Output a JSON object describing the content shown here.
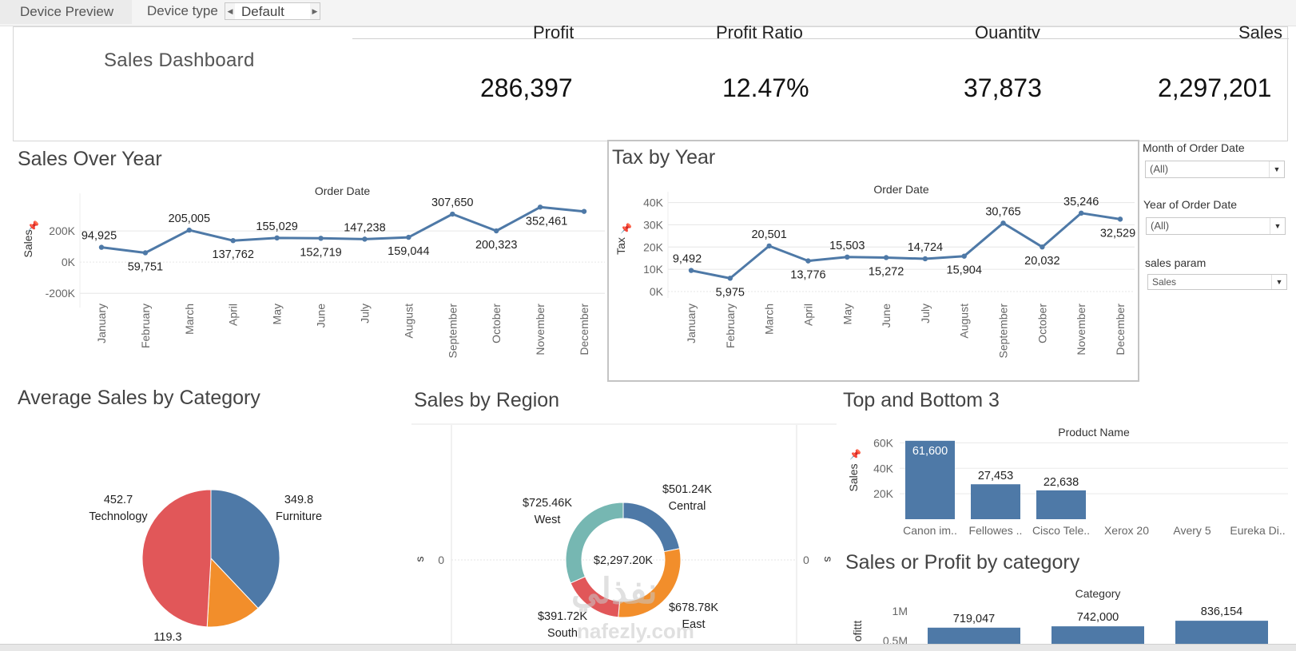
{
  "toolbar": {
    "tab_label": "Device Preview",
    "device_type_label": "Device type",
    "device_type_value": "Default"
  },
  "dashboard": {
    "title": "Sales Dashboard",
    "kpis": [
      {
        "label": "Profit",
        "value": "286,397"
      },
      {
        "label": "Profit Ratio",
        "value": "12.47%"
      },
      {
        "label": "Quantity",
        "value": "37,873"
      },
      {
        "label": "Sales",
        "value": "2,297,201"
      }
    ]
  },
  "filters": {
    "month": {
      "label": "Month of Order Date",
      "value": "(All)"
    },
    "year": {
      "label": "Year of Order Date",
      "value": "(All)"
    },
    "param": {
      "label": "sales param",
      "value": "Sales"
    }
  },
  "titles": {
    "sales_over_year": "Sales Over Year",
    "tax_by_year": "Tax by Year",
    "avg_sales_category": "Average Sales by Category",
    "sales_by_region": "Sales by Region",
    "top_bottom": "Top and Bottom 3",
    "sales_profit_category": "Sales or Profit by category"
  },
  "watermark": {
    "text": "نفذلي",
    "url": "nafezly.com"
  },
  "chart_data": [
    {
      "type": "line",
      "title": "Sales Over Year",
      "xlabel": "Order Date",
      "ylabel": "Sales",
      "categories": [
        "January",
        "February",
        "March",
        "April",
        "May",
        "June",
        "July",
        "August",
        "September",
        "October",
        "November",
        "December"
      ],
      "values": [
        94925,
        59751,
        205005,
        137762,
        155029,
        152719,
        147238,
        159044,
        307650,
        200323,
        352461,
        325000
      ],
      "data_labels": [
        "94,925",
        "59,751",
        "205,005",
        "137,762",
        "155,029",
        "152,719",
        "147,238",
        "159,044",
        "307,650",
        "200,323",
        "352,461",
        ""
      ],
      "yticks": [
        {
          "v": 200000,
          "t": "200K"
        },
        {
          "v": 0,
          "t": "0K"
        },
        {
          "v": -200000,
          "t": "-200K"
        }
      ],
      "ylim": [
        -250000,
        400000
      ],
      "color": "#4e79a7"
    },
    {
      "type": "line",
      "title": "Tax by Year",
      "xlabel": "Order Date",
      "ylabel": "Tax",
      "categories": [
        "January",
        "February",
        "March",
        "April",
        "May",
        "June",
        "July",
        "August",
        "September",
        "October",
        "November",
        "December"
      ],
      "values": [
        9492,
        5975,
        20501,
        13776,
        15503,
        15272,
        14724,
        15904,
        30765,
        20032,
        35246,
        32529
      ],
      "data_labels": [
        "9,492",
        "5,975",
        "20,501",
        "13,776",
        "15,503",
        "15,272",
        "14,724",
        "15,904",
        "30,765",
        "20,032",
        "35,246",
        "32,529"
      ],
      "yticks": [
        {
          "v": 40000,
          "t": "40K"
        },
        {
          "v": 30000,
          "t": "30K"
        },
        {
          "v": 20000,
          "t": "20K"
        },
        {
          "v": 10000,
          "t": "10K"
        },
        {
          "v": 0,
          "t": "0K"
        }
      ],
      "ylim": [
        0,
        42000
      ],
      "color": "#4e79a7"
    },
    {
      "type": "pie",
      "title": "Average Sales by Category",
      "slices": [
        {
          "name": "Furniture",
          "value": 349.8,
          "label": "349.8",
          "color": "#4e79a7"
        },
        {
          "name": "",
          "value": 119.3,
          "label": "119.3",
          "color": "#f28e2b"
        },
        {
          "name": "Technology",
          "value": 452.7,
          "label": "452.7",
          "color": "#e15759"
        }
      ]
    },
    {
      "type": "pie",
      "title": "Sales by Region",
      "center_label": "$2,297.20K",
      "axis_label": "s",
      "axis_tick": "0",
      "slices": [
        {
          "name": "Central",
          "value": 501.24,
          "label": "$501.24K",
          "color": "#4e79a7"
        },
        {
          "name": "East",
          "value": 678.78,
          "label": "$678.78K",
          "color": "#f28e2b"
        },
        {
          "name": "South",
          "value": 391.72,
          "label": "$391.72K",
          "color": "#e15759"
        },
        {
          "name": "West",
          "value": 725.46,
          "label": "$725.46K",
          "color": "#76b7b2"
        }
      ]
    },
    {
      "type": "bar",
      "title": "Top and Bottom 3",
      "xlabel": "Product Name",
      "ylabel": "Sales",
      "categories": [
        "Canon im..",
        "Fellowes ..",
        "Cisco Tele..",
        "Xerox 20",
        "Avery 5",
        "Eureka Di.."
      ],
      "values": [
        61600,
        27453,
        22638,
        0,
        0,
        0
      ],
      "data_labels": [
        "61,600",
        "27,453",
        "22,638",
        "",
        "",
        ""
      ],
      "yticks": [
        {
          "v": 60000,
          "t": "60K"
        },
        {
          "v": 40000,
          "t": "40K"
        },
        {
          "v": 20000,
          "t": "20K"
        }
      ],
      "ylim": [
        0,
        64000
      ],
      "color": "#4e79a7"
    },
    {
      "type": "bar",
      "title": "Sales or Profit by category",
      "xlabel": "Category",
      "ylabel": "ofittt",
      "values": [
        719047,
        742000,
        836154
      ],
      "data_labels": [
        "719,047",
        "742,000",
        "836,154"
      ],
      "yticks": [
        {
          "v": 1000000,
          "t": "1M"
        },
        {
          "v": 500000,
          "t": "0.5M"
        }
      ],
      "color": "#4e79a7"
    }
  ]
}
